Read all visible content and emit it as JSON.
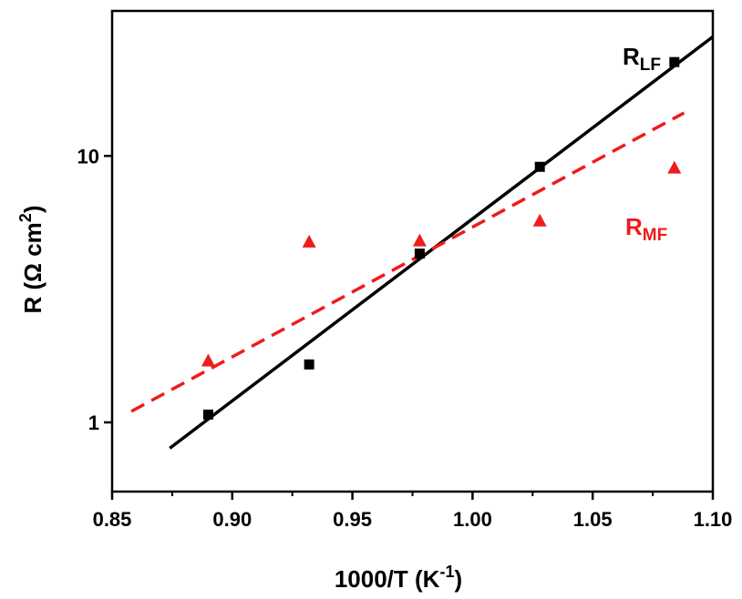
{
  "chart_data": {
    "type": "scatter",
    "xlabel": "1000/T (K",
    "xlabel_sup": "-1",
    "xlabel_end": ")",
    "ylabel": "R (Ω cm",
    "ylabel_sup": "2",
    "ylabel_end": ")",
    "xlim": [
      0.85,
      1.1
    ],
    "ylim": [
      0.55,
      35
    ],
    "yscale": "log",
    "xticks": [
      0.85,
      0.9,
      0.95,
      1.0,
      1.05,
      1.1
    ],
    "xtick_labels": [
      "0.85",
      "0.90",
      "0.95",
      "1.00",
      "1.05",
      "1.10"
    ],
    "yticks": [
      1,
      10
    ],
    "ytick_labels": [
      "1",
      "10"
    ],
    "grid": false,
    "series": [
      {
        "name_main": "R",
        "name_sub": "LF",
        "color": "#000000",
        "marker": "square",
        "x": [
          0.89,
          0.932,
          0.978,
          1.028,
          1.084
        ],
        "y": [
          1.07,
          1.65,
          4.3,
          9.1,
          22.5
        ],
        "fit": {
          "style": "solid",
          "x": [
            0.874,
            1.1
          ],
          "y": [
            0.8,
            28.0
          ]
        }
      },
      {
        "name_main": "R",
        "name_sub": "MF",
        "color": "#ee1c1c",
        "marker": "triangle",
        "x": [
          0.89,
          0.932,
          0.978,
          1.028,
          1.084
        ],
        "y": [
          1.7,
          4.75,
          4.8,
          5.7,
          9.0
        ],
        "fit": {
          "style": "dashed",
          "x": [
            0.858,
            1.088
          ],
          "y": [
            1.1,
            14.5
          ]
        }
      }
    ]
  }
}
